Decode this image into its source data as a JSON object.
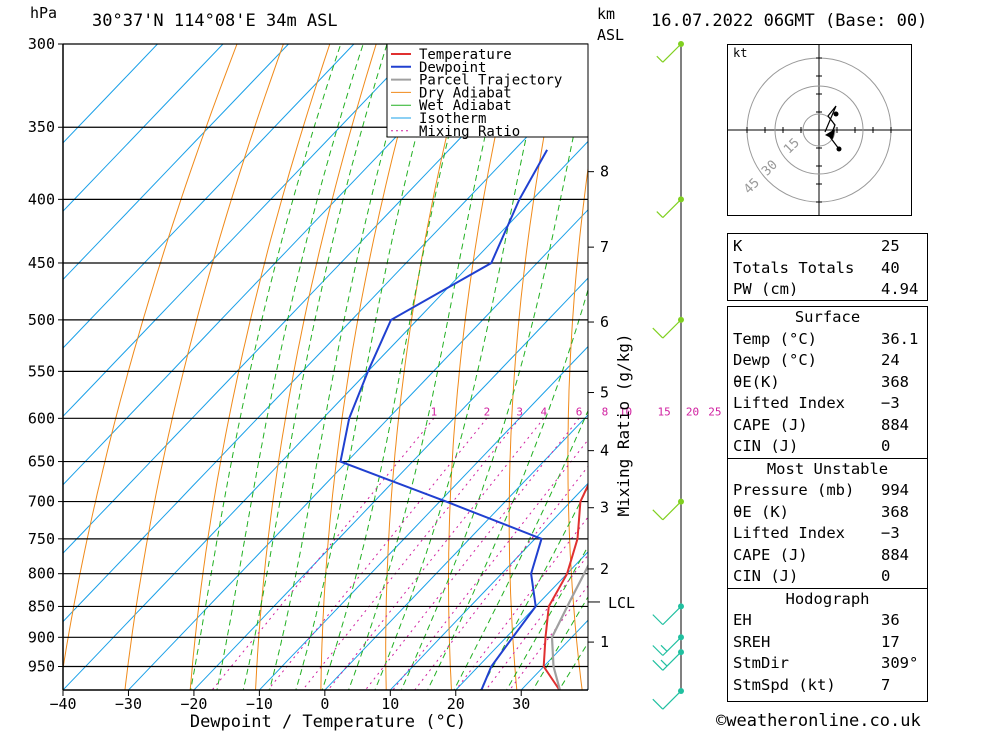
{
  "header": {
    "pressure_unit": "hPa",
    "location": "30°37'N 114°08'E 34m ASL",
    "height_unit_km": "km",
    "height_unit_asl": "ASL",
    "datetime": "16.07.2022 06GMT (Base: 00)"
  },
  "chart_data": {
    "type": "line",
    "subtype": "skew-T log-P diagram",
    "xlabel": "Dewpoint / Temperature (°C)",
    "ylabel": "hPa",
    "xlim": [
      -40,
      40
    ],
    "ylim": [
      990,
      300
    ],
    "y_scale": "log",
    "x_ticks": [
      -40,
      -30,
      -20,
      -10,
      0,
      10,
      20,
      30
    ],
    "x_tick_labels": [
      "−40",
      "−30",
      "−20",
      "−10",
      "0",
      "10",
      "20",
      "30"
    ],
    "y_ticks": [
      300,
      350,
      400,
      450,
      500,
      550,
      600,
      650,
      700,
      750,
      800,
      850,
      900,
      950
    ],
    "km_ticks": [
      {
        "p": 380,
        "label": "8"
      },
      {
        "p": 437,
        "label": "7"
      },
      {
        "p": 502,
        "label": "6"
      },
      {
        "p": 572,
        "label": "5"
      },
      {
        "p": 637,
        "label": "4"
      },
      {
        "p": 708,
        "label": "3"
      },
      {
        "p": 793,
        "label": "2"
      },
      {
        "p": 908,
        "label": "1"
      }
    ],
    "lcl": {
      "p": 843,
      "label": "LCL"
    },
    "secondary_axis_label": "Mixing Ratio (g/kg)",
    "mixing_ratio_labels": [
      "1",
      "2",
      "3",
      "4",
      "6",
      "8",
      "10",
      "15",
      "20",
      "25"
    ],
    "mixing_ratio_values": [
      1,
      2,
      3,
      4,
      6,
      8,
      10,
      15,
      20,
      25
    ],
    "legend": [
      "Temperature",
      "Dewpoint",
      "Parcel Trajectory",
      "Dry Adiabat",
      "Wet Adiabat",
      "Isotherm",
      "Mixing Ratio"
    ],
    "legend_position": "top-right",
    "series": [
      {
        "name": "Temperature",
        "color": "#e03030",
        "points": [
          [
            994,
            36.1
          ],
          [
            950,
            30
          ],
          [
            900,
            26
          ],
          [
            850,
            22
          ],
          [
            800,
            20
          ],
          [
            750,
            16.5
          ],
          [
            700,
            11.5
          ],
          [
            650,
            8.5
          ],
          [
            600,
            4
          ],
          [
            550,
            -1.5
          ],
          [
            500,
            -8
          ],
          [
            450,
            -14.5
          ],
          [
            400,
            -22.5
          ],
          [
            365,
            -29
          ]
        ]
      },
      {
        "name": "Dewpoint",
        "color": "#2040d0",
        "points": [
          [
            994,
            24
          ],
          [
            950,
            22
          ],
          [
            900,
            21
          ],
          [
            850,
            20
          ],
          [
            800,
            14.5
          ],
          [
            750,
            11
          ],
          [
            700,
            -9
          ],
          [
            650,
            -31
          ],
          [
            600,
            -36
          ],
          [
            550,
            -40
          ],
          [
            500,
            -44
          ],
          [
            450,
            -37
          ],
          [
            400,
            -42
          ],
          [
            365,
            -45
          ]
        ]
      },
      {
        "name": "Parcel Trajectory",
        "color": "#a0a0a0",
        "points": [
          [
            994,
            36.1
          ],
          [
            950,
            31.5
          ],
          [
            900,
            27
          ],
          [
            843,
            24.5
          ],
          [
            800,
            22.6
          ],
          [
            750,
            20.2
          ],
          [
            700,
            17.2
          ],
          [
            650,
            13.5
          ],
          [
            600,
            9.5
          ],
          [
            550,
            5
          ],
          [
            500,
            -0.5
          ],
          [
            450,
            -6.5
          ],
          [
            400,
            -13.5
          ],
          [
            365,
            -19.5
          ]
        ]
      }
    ],
    "wind_profile": [
      {
        "p": 994,
        "speed": 10
      },
      {
        "p": 925,
        "speed": 15
      },
      {
        "p": 900,
        "speed": 15
      },
      {
        "p": 850,
        "speed": 10
      },
      {
        "p": 700,
        "speed": 10
      },
      {
        "p": 500,
        "speed": 10
      },
      {
        "p": 400,
        "speed": 5
      },
      {
        "p": 300,
        "speed": 5
      }
    ]
  },
  "hodograph": {
    "unit": "kt",
    "rings": [
      "15",
      "30",
      "45"
    ]
  },
  "indices": {
    "k_label": "K",
    "k": "25",
    "tt_label": "Totals Totals",
    "tt": "40",
    "pw_label": "PW (cm)",
    "pw": "4.94"
  },
  "surface": {
    "title": "Surface",
    "temp_label": "Temp (°C)",
    "temp": "36.1",
    "dewp_label": "Dewp (°C)",
    "dewp": "24",
    "theta_label": "θE(K)",
    "theta": "368",
    "li_label": "Lifted Index",
    "li": "−3",
    "cape_label": "CAPE (J)",
    "cape": "884",
    "cin_label": "CIN (J)",
    "cin": "0"
  },
  "most_unstable": {
    "title": "Most Unstable",
    "pressure_label": "Pressure (mb)",
    "pressure": "994",
    "theta_label": "θE (K)",
    "theta": "368",
    "li_label": "Lifted Index",
    "li": "−3",
    "cape_label": "CAPE (J)",
    "cape": "884",
    "cin_label": "CIN (J)",
    "cin": "0"
  },
  "hodo_stats": {
    "title": "Hodograph",
    "eh_label": "EH",
    "eh": "36",
    "sreh_label": "SREH",
    "sreh": "17",
    "stmdir_label": "StmDir",
    "stmdir": "309°",
    "stmspd_label": "StmSpd (kt)",
    "stmspd": "7"
  },
  "footer": "©weatheronline.co.uk"
}
